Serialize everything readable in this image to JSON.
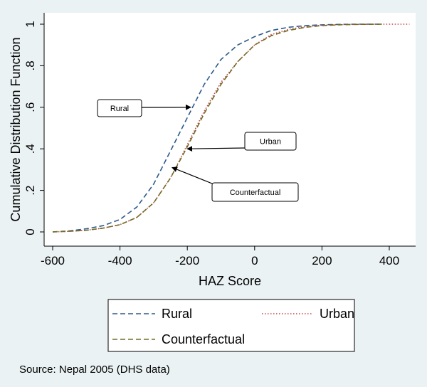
{
  "chart_data": {
    "type": "line",
    "xlabel": "HAZ Score",
    "ylabel": "Cumulative Distribution Function",
    "xlim": [
      -620,
      470
    ],
    "ylim": [
      0,
      1
    ],
    "xticks": [
      -600,
      -400,
      -200,
      0,
      200,
      400
    ],
    "xtick_labels": [
      "-600",
      "-400",
      "-200",
      "0",
      "200",
      "400"
    ],
    "yticks": [
      0,
      0.2,
      0.4,
      0.6,
      0.8,
      1
    ],
    "ytick_labels": [
      "0",
      ".2",
      ".4",
      ".6",
      ".8",
      "1"
    ],
    "grid": false,
    "legend_position": "bottom",
    "series": [
      {
        "name": "Rural",
        "color": "#2d5a8c",
        "style": "dashed",
        "x": [
          -600,
          -550,
          -500,
          -450,
          -400,
          -350,
          -300,
          -250,
          -200,
          -150,
          -100,
          -50,
          0,
          50,
          100,
          150,
          200,
          250,
          300,
          380
        ],
        "y": [
          0.0,
          0.005,
          0.015,
          0.03,
          0.06,
          0.12,
          0.23,
          0.39,
          0.55,
          0.71,
          0.83,
          0.9,
          0.94,
          0.97,
          0.985,
          0.993,
          0.997,
          0.999,
          1.0,
          1.0
        ]
      },
      {
        "name": "Urban",
        "color": "#c8404a",
        "style": "dotted",
        "x": [
          -600,
          -550,
          -500,
          -450,
          -400,
          -350,
          -300,
          -250,
          -200,
          -150,
          -100,
          -50,
          0,
          50,
          100,
          150,
          200,
          250,
          300,
          350,
          460
        ],
        "y": [
          0.0,
          0.003,
          0.008,
          0.018,
          0.035,
          0.07,
          0.14,
          0.26,
          0.42,
          0.58,
          0.72,
          0.82,
          0.9,
          0.95,
          0.975,
          0.988,
          0.995,
          0.998,
          0.999,
          1.0,
          1.0
        ]
      },
      {
        "name": "Counterfactual",
        "color": "#6e6e24",
        "style": "dashed",
        "x": [
          -600,
          -550,
          -500,
          -450,
          -400,
          -350,
          -300,
          -250,
          -200,
          -150,
          -100,
          -50,
          0,
          50,
          100,
          150,
          200,
          250,
          300,
          380
        ],
        "y": [
          0.0,
          0.003,
          0.008,
          0.018,
          0.035,
          0.07,
          0.14,
          0.26,
          0.41,
          0.57,
          0.71,
          0.82,
          0.9,
          0.945,
          0.97,
          0.985,
          0.993,
          0.997,
          0.999,
          1.0
        ]
      }
    ],
    "annotations": [
      {
        "text": "Rural",
        "arrow_to": [
          -190,
          0.6
        ]
      },
      {
        "text": "Urban",
        "arrow_to": [
          -200,
          0.4
        ]
      },
      {
        "text": "Counterfactual",
        "arrow_to": [
          -245,
          0.31
        ]
      }
    ],
    "legend": [
      {
        "label": "Rural",
        "color": "#2d5a8c",
        "style": "dashed"
      },
      {
        "label": "Urban",
        "color": "#c8404a",
        "style": "dotted"
      },
      {
        "label": "Counterfactual",
        "color": "#6e6e24",
        "style": "dashed"
      }
    ]
  },
  "source_note": "Source: Nepal 2005 (DHS data)"
}
